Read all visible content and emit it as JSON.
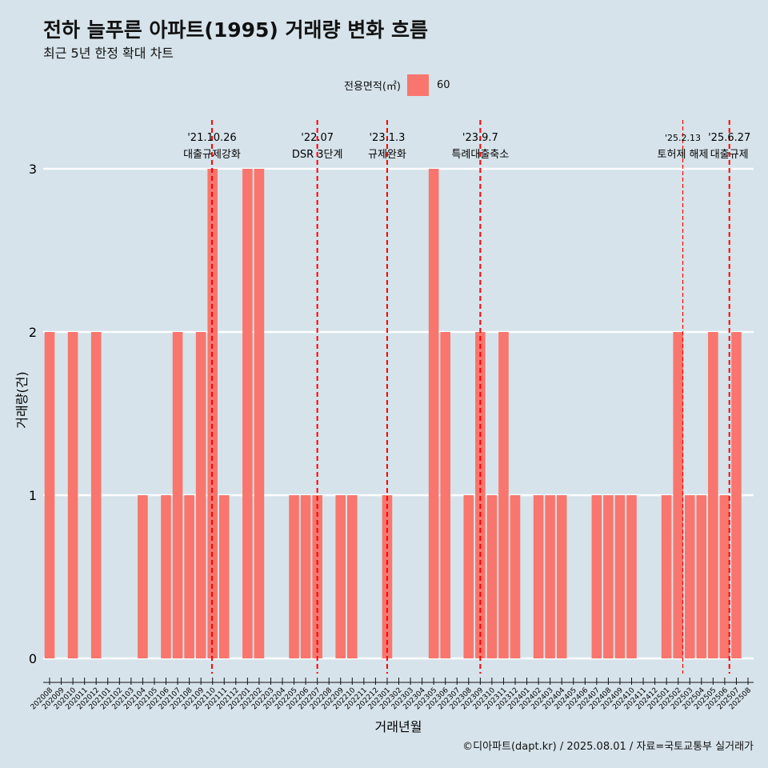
{
  "header": {
    "title": "전하 늘푸른 아파트(1995) 거래량 변화 흐름",
    "subtitle": "최근 5년 한정 확대 차트"
  },
  "caption": "©디아파트(dapt.kr) / 2025.08.01 / 자료=국토교통부 실거래가",
  "colors": {
    "bar": "#f8766d",
    "background": "#d6e3ea",
    "grid": "#ffffff",
    "event_line": "#ff0000"
  },
  "chart_data": {
    "type": "bar",
    "title": "전하 늘푸른 아파트(1995) 거래량 변화 흐름",
    "subtitle": "최근 5년 한정 확대 차트",
    "xlabel": "거래년월",
    "ylabel": "거래량(건)",
    "ylim": [
      0,
      3
    ],
    "yticks": [
      0,
      1,
      2,
      3
    ],
    "grid": true,
    "legend": {
      "title": "전용면적(㎡)",
      "entries": [
        "60"
      ],
      "position": "top"
    },
    "categories": [
      "202008",
      "202009",
      "202010",
      "202011",
      "202012",
      "202101",
      "202102",
      "202103",
      "202104",
      "202105",
      "202106",
      "202107",
      "202108",
      "202109",
      "202110",
      "202111",
      "202112",
      "202201",
      "202202",
      "202203",
      "202204",
      "202205",
      "202206",
      "202207",
      "202208",
      "202209",
      "202210",
      "202211",
      "202212",
      "202301",
      "202302",
      "202303",
      "202304",
      "202305",
      "202306",
      "202307",
      "202308",
      "202309",
      "202310",
      "202311",
      "202312",
      "202401",
      "202402",
      "202403",
      "202404",
      "202405",
      "202406",
      "202407",
      "202408",
      "202409",
      "202410",
      "202411",
      "202412",
      "202501",
      "202502",
      "202503",
      "202504",
      "202505",
      "202506",
      "202507",
      "202508"
    ],
    "series": [
      {
        "name": "60",
        "values": [
          2,
          0,
          2,
          0,
          2,
          0,
          0,
          0,
          1,
          0,
          1,
          2,
          1,
          2,
          3,
          1,
          0,
          3,
          3,
          0,
          0,
          1,
          1,
          1,
          0,
          1,
          1,
          0,
          0,
          1,
          0,
          0,
          0,
          3,
          2,
          0,
          1,
          2,
          1,
          2,
          1,
          0,
          1,
          1,
          1,
          0,
          0,
          1,
          1,
          1,
          1,
          0,
          0,
          1,
          2,
          1,
          1,
          2,
          1,
          2,
          0
        ]
      }
    ],
    "events": [
      {
        "date": "'21.10.26",
        "label": "대출규제강화",
        "position": 13.95,
        "style": "dashed"
      },
      {
        "date": "'22.07",
        "label": "DSR 3단계",
        "position": 23,
        "style": "dashed"
      },
      {
        "date": "'23.1.3",
        "label": "규제완화",
        "position": 29,
        "style": "dashed"
      },
      {
        "date": "'23.9.7",
        "label": "특례대출축소",
        "position": 37,
        "style": "dashed"
      },
      {
        "date": "'25.2.13",
        "label": "토허제 해제",
        "position": 54.4,
        "style": "thin"
      },
      {
        "date": "'25.6.27",
        "label": "대출규제",
        "position": 58.4,
        "style": "dashed"
      }
    ]
  }
}
